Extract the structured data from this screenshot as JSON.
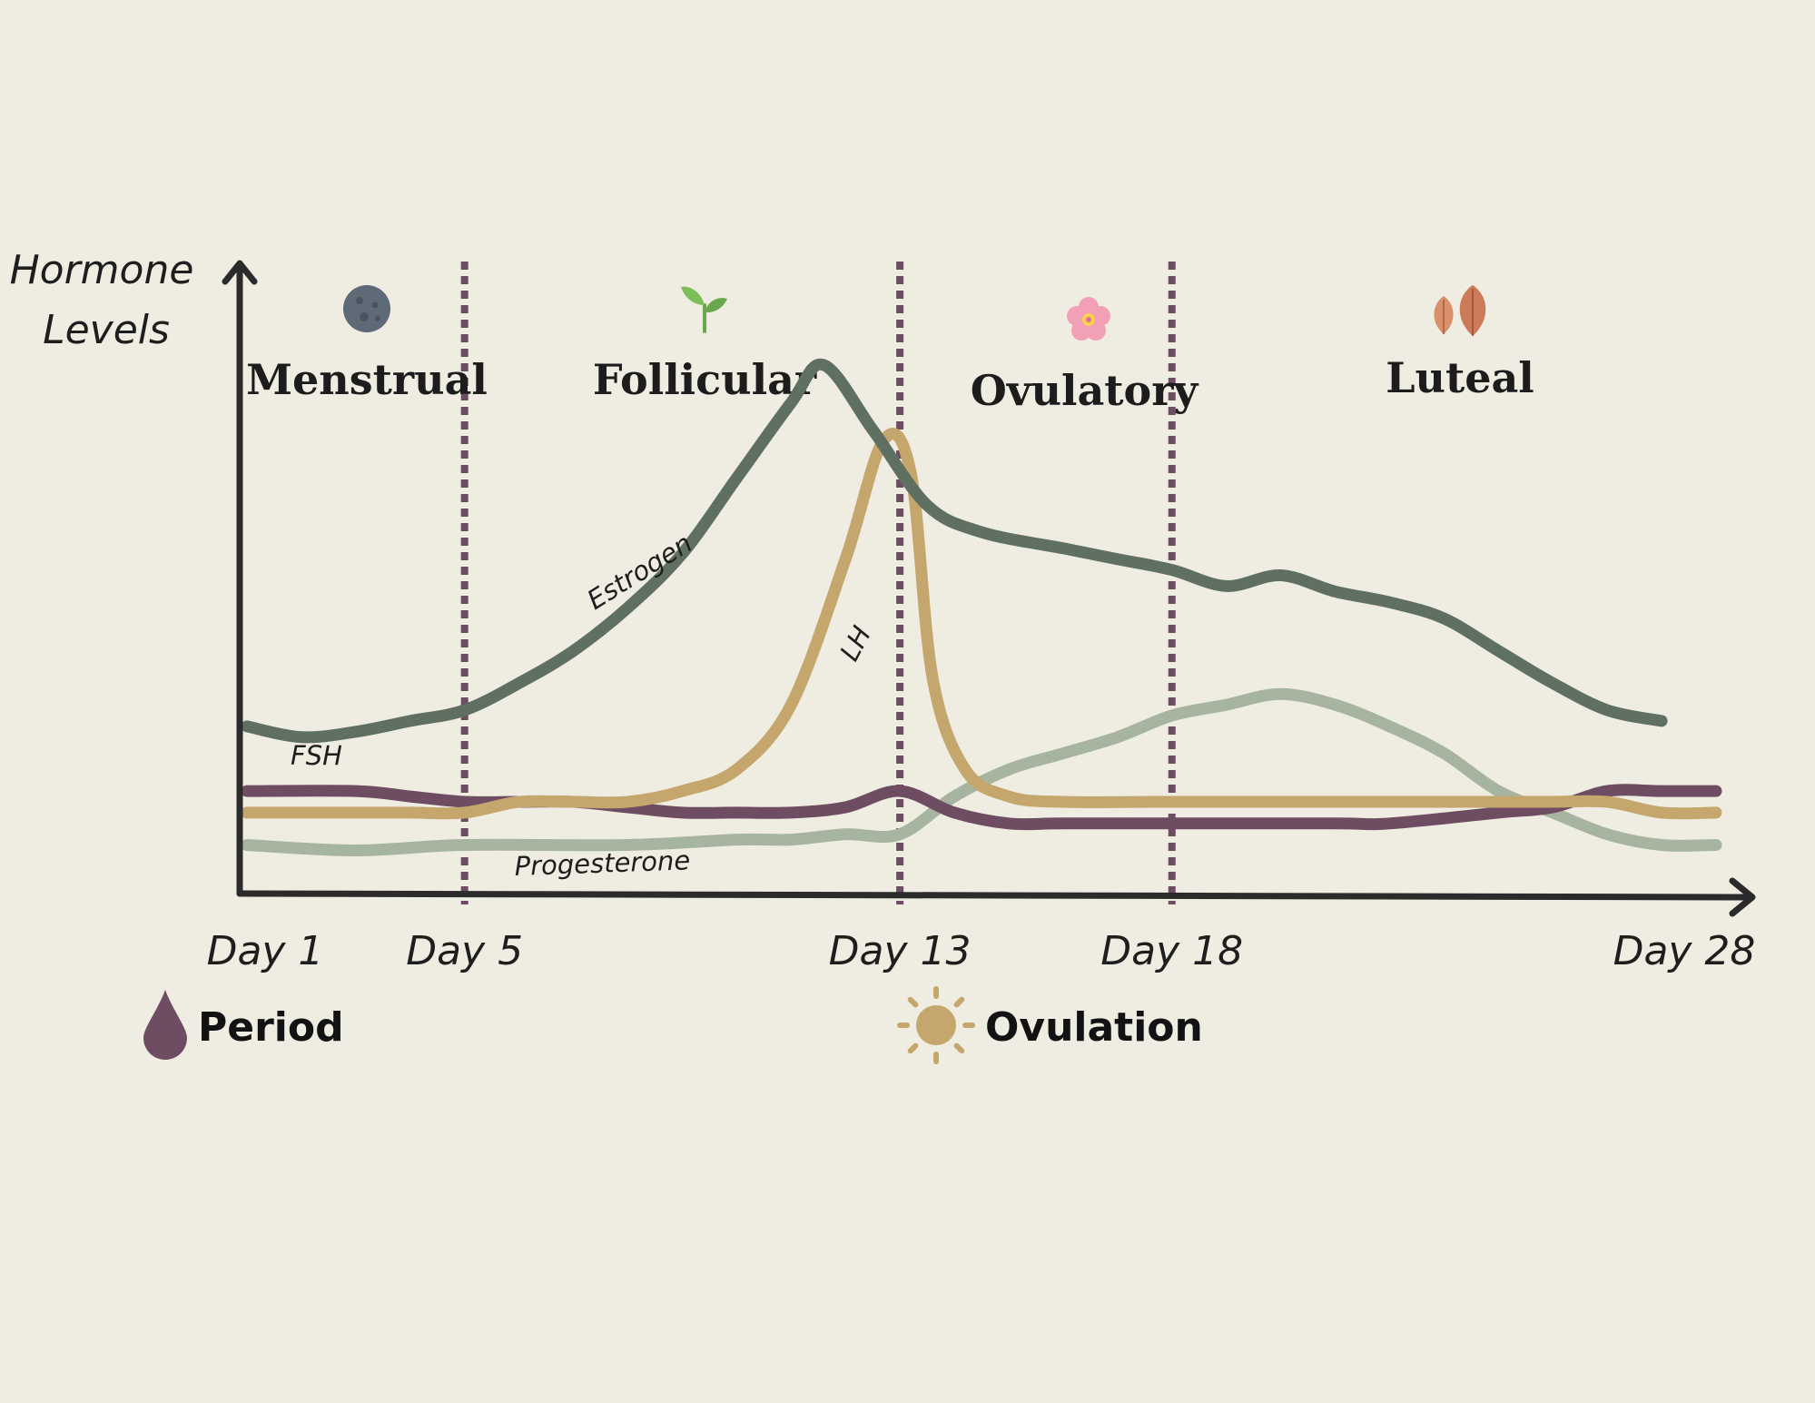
{
  "chart_data": {
    "type": "line",
    "ylabel": [
      "Hormone",
      "Levels"
    ],
    "x_ticks": [
      {
        "day": 1,
        "label": "Day 1"
      },
      {
        "day": 5,
        "label": "Day 5"
      },
      {
        "day": 13,
        "label": "Day 13"
      },
      {
        "day": 18,
        "label": "Day 18"
      },
      {
        "day": 28,
        "label": "Day 28"
      }
    ],
    "phase_boundaries": [
      5,
      13,
      18
    ],
    "phases": [
      {
        "name": "Menstrual",
        "icon": "moon-icon",
        "center_day": 3
      },
      {
        "name": "Follicular",
        "icon": "sprout-icon",
        "center_day": 9
      },
      {
        "name": "Ovulatory",
        "icon": "flower-icon",
        "center_day": 15.5
      },
      {
        "name": "Luteal",
        "icon": "leaves-icon",
        "center_day": 23
      }
    ],
    "series": [
      {
        "name": "Estrogen",
        "color": "#5f7063",
        "points": [
          [
            1,
            0.31
          ],
          [
            2,
            0.29
          ],
          [
            3,
            0.3
          ],
          [
            4,
            0.32
          ],
          [
            5,
            0.34
          ],
          [
            6,
            0.39
          ],
          [
            7,
            0.45
          ],
          [
            8,
            0.53
          ],
          [
            9,
            0.63
          ],
          [
            10,
            0.77
          ],
          [
            11,
            0.91
          ],
          [
            11.6,
            0.98
          ],
          [
            12.5,
            0.86
          ],
          [
            13.5,
            0.72
          ],
          [
            14.5,
            0.67
          ],
          [
            16,
            0.64
          ],
          [
            17,
            0.62
          ],
          [
            18,
            0.6
          ],
          [
            19,
            0.57
          ],
          [
            20,
            0.59
          ],
          [
            21,
            0.56
          ],
          [
            22,
            0.54
          ],
          [
            23,
            0.51
          ],
          [
            24,
            0.45
          ],
          [
            25,
            0.39
          ],
          [
            26,
            0.34
          ],
          [
            27,
            0.32
          ]
        ]
      },
      {
        "name": "LH",
        "color": "#c5a66c",
        "points": [
          [
            1,
            0.15
          ],
          [
            3,
            0.15
          ],
          [
            4,
            0.15
          ],
          [
            5,
            0.15
          ],
          [
            6,
            0.17
          ],
          [
            7,
            0.17
          ],
          [
            8,
            0.17
          ],
          [
            9,
            0.19
          ],
          [
            10,
            0.23
          ],
          [
            11,
            0.35
          ],
          [
            12,
            0.62
          ],
          [
            12.7,
            0.84
          ],
          [
            13.2,
            0.78
          ],
          [
            13.6,
            0.4
          ],
          [
            14.2,
            0.23
          ],
          [
            15,
            0.18
          ],
          [
            16,
            0.17
          ],
          [
            18,
            0.17
          ],
          [
            22,
            0.17
          ],
          [
            24,
            0.17
          ],
          [
            25,
            0.17
          ],
          [
            26,
            0.17
          ],
          [
            27,
            0.15
          ],
          [
            28,
            0.15
          ]
        ]
      },
      {
        "name": "FSH",
        "color": "#6e4c62",
        "points": [
          [
            1,
            0.19
          ],
          [
            3,
            0.19
          ],
          [
            4,
            0.18
          ],
          [
            5,
            0.17
          ],
          [
            6,
            0.17
          ],
          [
            7,
            0.17
          ],
          [
            8,
            0.16
          ],
          [
            9,
            0.15
          ],
          [
            10,
            0.15
          ],
          [
            11,
            0.15
          ],
          [
            12,
            0.16
          ],
          [
            13,
            0.19
          ],
          [
            14,
            0.15
          ],
          [
            15,
            0.13
          ],
          [
            16,
            0.13
          ],
          [
            18,
            0.13
          ],
          [
            21,
            0.13
          ],
          [
            22,
            0.13
          ],
          [
            24,
            0.15
          ],
          [
            25,
            0.16
          ],
          [
            26,
            0.19
          ],
          [
            27,
            0.19
          ],
          [
            28,
            0.19
          ]
        ]
      },
      {
        "name": "Progesterone",
        "color": "#a7b5a0",
        "points": [
          [
            1,
            0.09
          ],
          [
            3,
            0.08
          ],
          [
            5,
            0.09
          ],
          [
            8,
            0.09
          ],
          [
            10,
            0.1
          ],
          [
            11,
            0.1
          ],
          [
            12,
            0.11
          ],
          [
            13,
            0.11
          ],
          [
            14,
            0.18
          ],
          [
            15,
            0.23
          ],
          [
            16,
            0.26
          ],
          [
            17,
            0.29
          ],
          [
            18,
            0.33
          ],
          [
            19,
            0.35
          ],
          [
            20,
            0.37
          ],
          [
            21,
            0.35
          ],
          [
            22,
            0.31
          ],
          [
            23,
            0.26
          ],
          [
            24,
            0.19
          ],
          [
            25,
            0.15
          ],
          [
            26,
            0.11
          ],
          [
            27,
            0.09
          ],
          [
            28,
            0.09
          ]
        ]
      }
    ],
    "legend": [
      {
        "label": "Period",
        "icon": "drop-icon",
        "color": "#6e4c62"
      },
      {
        "label": "Ovulation",
        "icon": "sun-icon",
        "color": "#c5a66c"
      }
    ]
  }
}
